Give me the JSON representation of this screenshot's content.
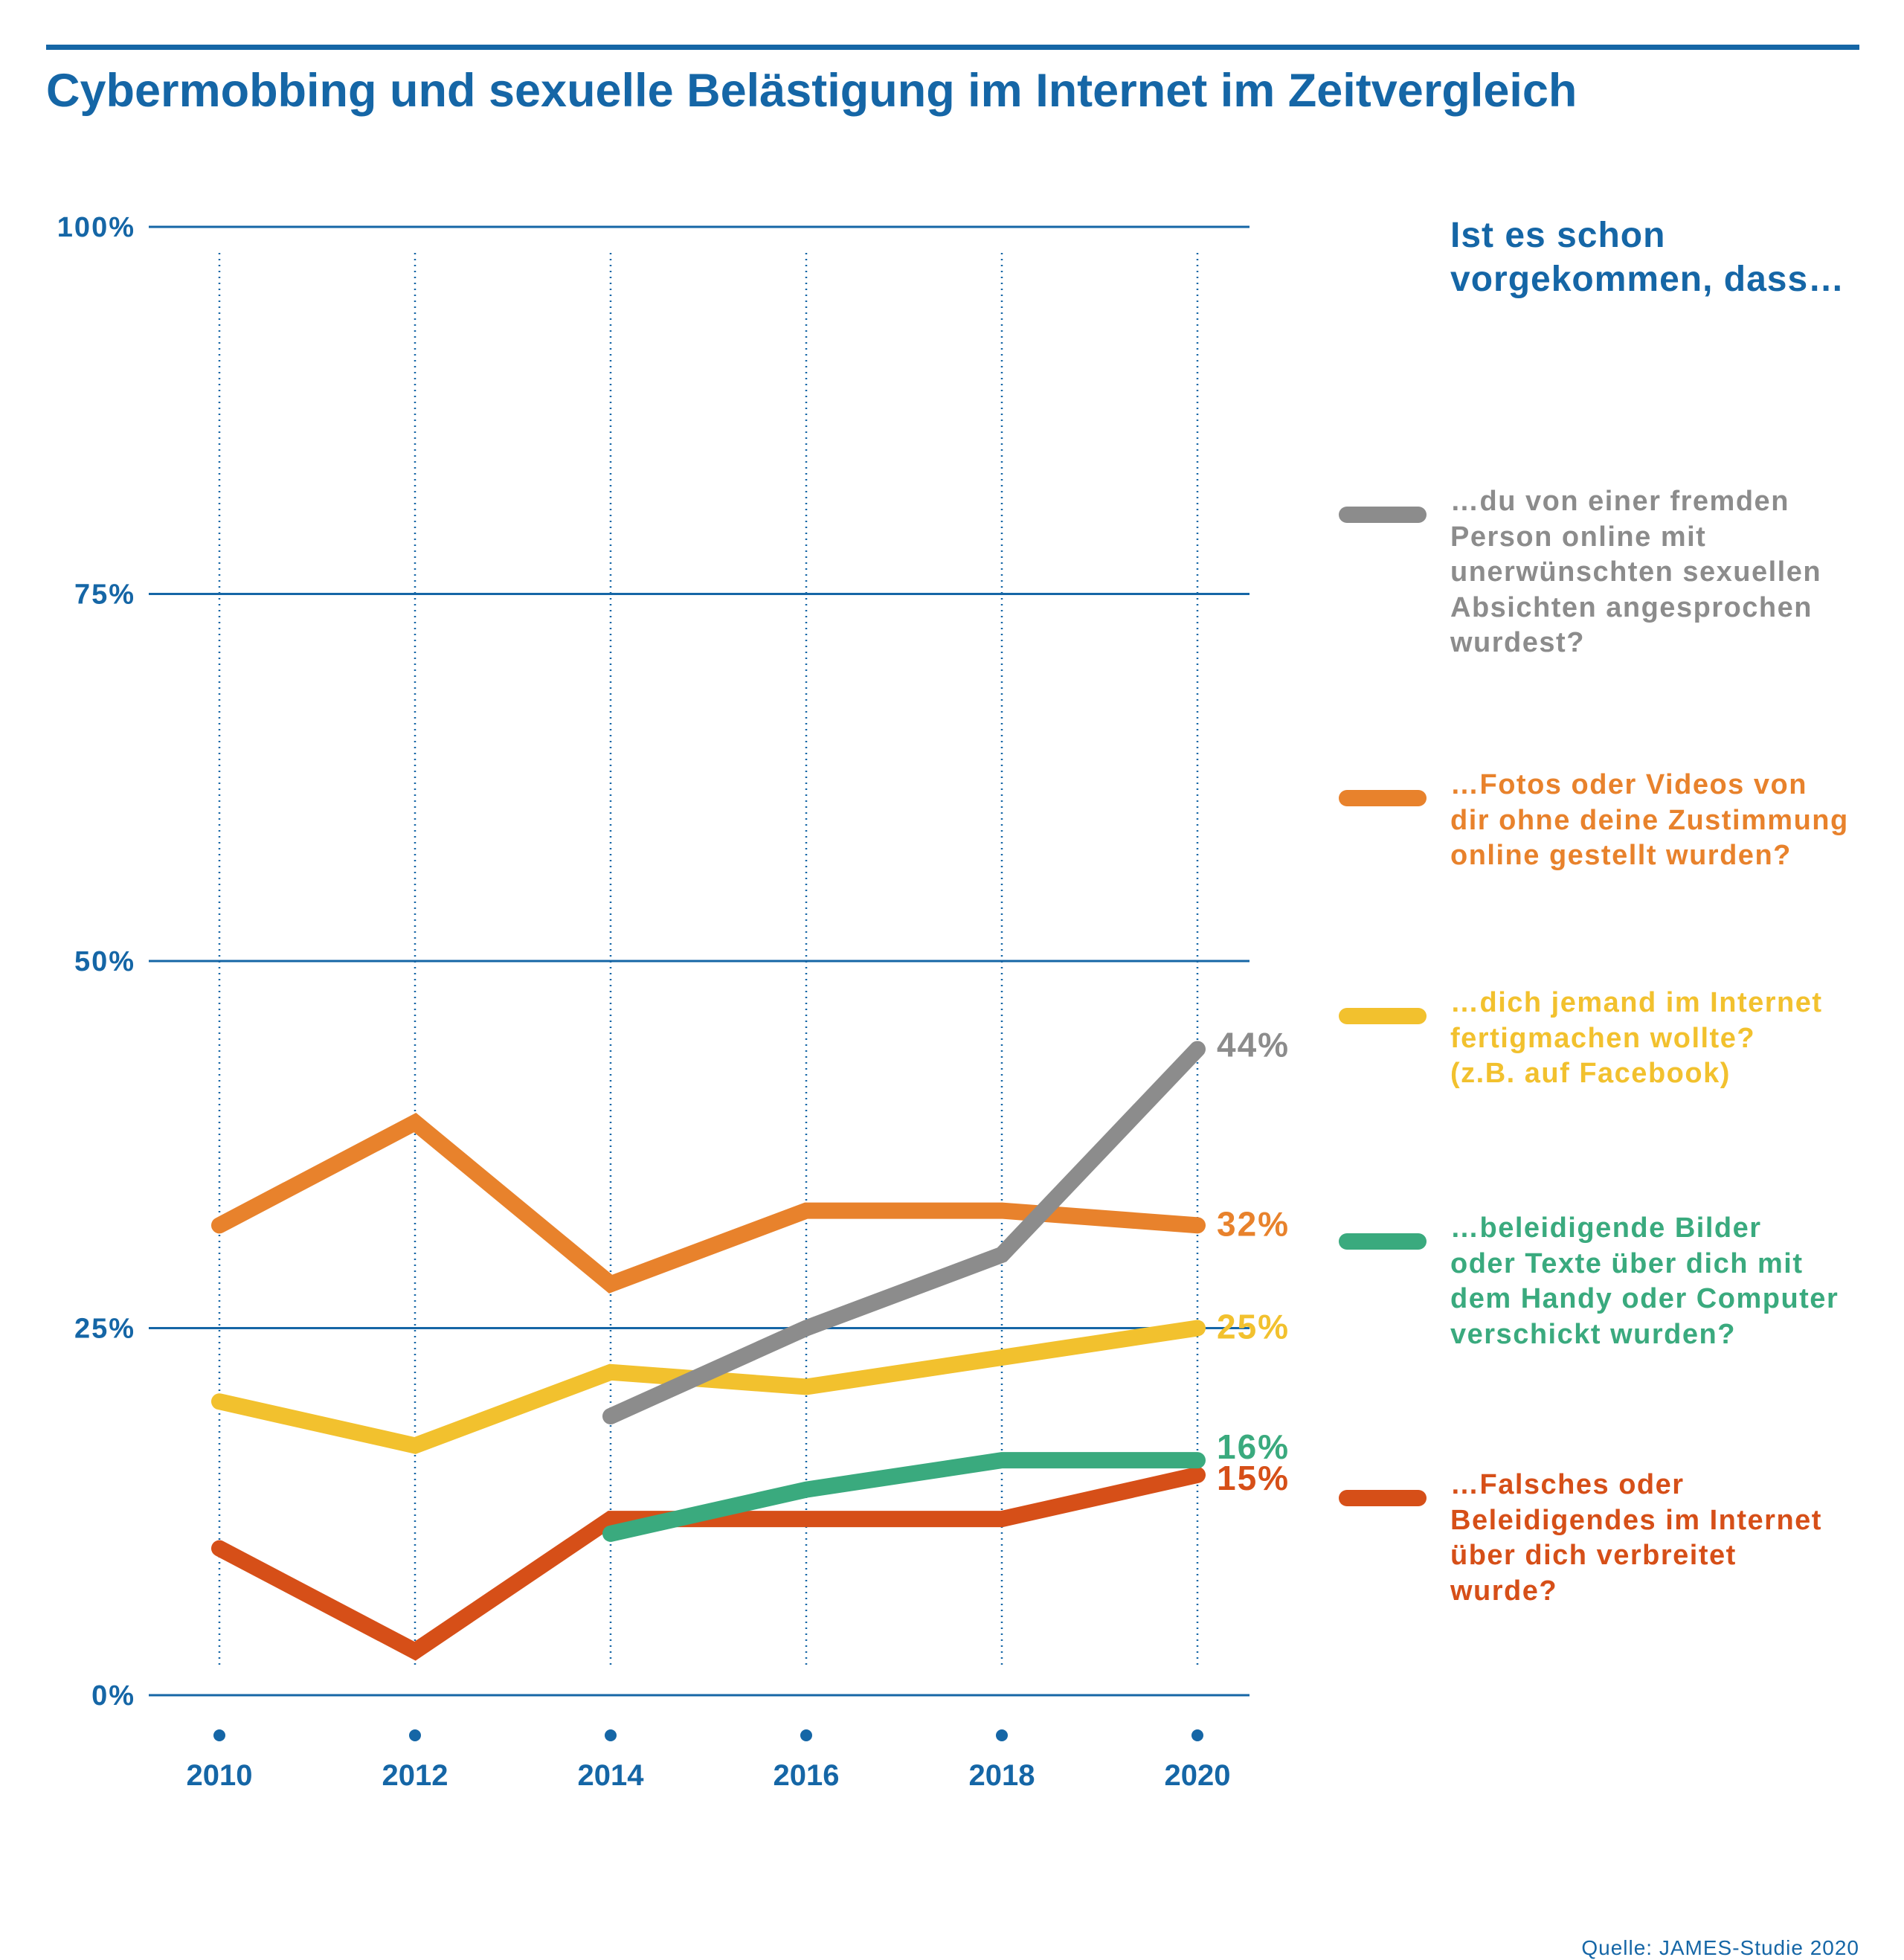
{
  "title": "Cybermobbing und sexuelle Belästigung im Internet im Zeitvergleich",
  "legend_heading": "Ist es schon vorgekommen, dass…",
  "source": "Quelle: JAMES-Studie 2020",
  "colors": {
    "accent": "#1566a6",
    "grey": "#8c8c8c",
    "orange": "#e8822c",
    "yellow": "#f2c12e",
    "green": "#3aaa7e",
    "red": "#d64f18"
  },
  "chart_data": {
    "type": "line",
    "title": "Cybermobbing und sexuelle Belästigung im Internet im Zeitvergleich",
    "xlabel": "",
    "ylabel": "",
    "x": [
      "2010",
      "2012",
      "2014",
      "2016",
      "2018",
      "2020"
    ],
    "y_ticks": [
      "0%",
      "25%",
      "50%",
      "75%",
      "100%"
    ],
    "y_tick_values": [
      0,
      25,
      50,
      75,
      100
    ],
    "ylim": [
      0,
      100
    ],
    "grid": "horizontal solid, vertical dotted",
    "legend_position": "right",
    "series": [
      {
        "name": "…du von einer fremden Person online mit unerwünschten sexuellen Absichten angesprochen wurdest?",
        "color": "#8c8c8c",
        "values": [
          null,
          null,
          19,
          25,
          30,
          44
        ],
        "end_label": "44%"
      },
      {
        "name": "…Fotos oder Videos von dir ohne deine Zustimmung online gestellt wurden?",
        "color": "#e8822c",
        "values": [
          32,
          39,
          28,
          33,
          33,
          32
        ],
        "end_label": "32%"
      },
      {
        "name": "…dich jemand im Internet fertigmachen wollte? (z.B. auf Facebook)",
        "color": "#f2c12e",
        "values": [
          20,
          17,
          22,
          21,
          23,
          25
        ],
        "end_label": "25%"
      },
      {
        "name": "…beleidigende Bilder oder Texte über dich mit dem Handy oder Computer verschickt wurden?",
        "color": "#3aaa7e",
        "values": [
          null,
          null,
          11,
          14,
          16,
          16
        ],
        "end_label": "16%"
      },
      {
        "name": "…Falsches oder Beleidigendes im Internet über dich verbreitet wurde?",
        "color": "#d64f18",
        "values": [
          10,
          3,
          12,
          12,
          12,
          15
        ],
        "end_label": "15%"
      }
    ]
  }
}
